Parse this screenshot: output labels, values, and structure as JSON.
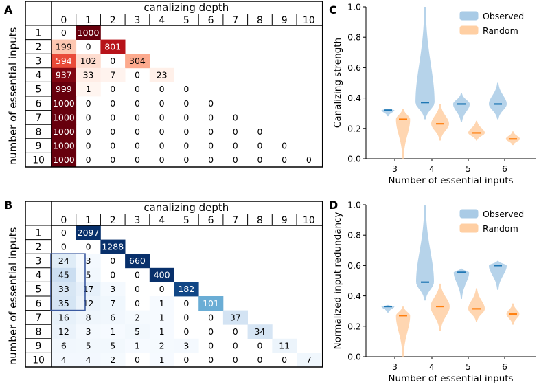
{
  "chart_data": [
    {
      "panel": "A",
      "type": "heatmap",
      "colormap": "reds",
      "vmax": 1000,
      "xlabel": "canalizing depth",
      "ylabel": "number of essential inputs",
      "col_labels": [
        "0",
        "1",
        "2",
        "3",
        "4",
        "5",
        "6",
        "7",
        "8",
        "9",
        "10"
      ],
      "row_labels": [
        "1",
        "2",
        "3",
        "4",
        "5",
        "6",
        "7",
        "8",
        "9",
        "10"
      ],
      "rows": [
        [
          0,
          1000
        ],
        [
          199,
          0,
          801
        ],
        [
          594,
          102,
          0,
          304
        ],
        [
          937,
          33,
          7,
          0,
          23
        ],
        [
          999,
          1,
          0,
          0,
          0,
          0
        ],
        [
          1000,
          0,
          0,
          0,
          0,
          0,
          0
        ],
        [
          1000,
          0,
          0,
          0,
          0,
          0,
          0,
          0
        ],
        [
          1000,
          0,
          0,
          0,
          0,
          0,
          0,
          0,
          0
        ],
        [
          1000,
          0,
          0,
          0,
          0,
          0,
          0,
          0,
          0,
          0
        ],
        [
          1000,
          0,
          0,
          0,
          0,
          0,
          0,
          0,
          0,
          0,
          0
        ]
      ]
    },
    {
      "panel": "B",
      "type": "heatmap",
      "colormap": "blues",
      "vmax": 200,
      "xlabel": "canalizing depth",
      "ylabel": "number of essential inputs",
      "col_labels": [
        "0",
        "1",
        "2",
        "3",
        "4",
        "5",
        "6",
        "7",
        "8",
        "9",
        "10"
      ],
      "row_labels": [
        "1",
        "2",
        "3",
        "4",
        "5",
        "6",
        "7",
        "8",
        "9",
        "10"
      ],
      "highlight": {
        "rows": [
          3,
          6
        ],
        "col": 0
      },
      "rows": [
        [
          0,
          2097
        ],
        [
          0,
          0,
          1288
        ],
        [
          24,
          3,
          0,
          660
        ],
        [
          45,
          5,
          0,
          0,
          400
        ],
        [
          33,
          17,
          3,
          0,
          0,
          182
        ],
        [
          35,
          12,
          7,
          0,
          1,
          0,
          101
        ],
        [
          16,
          8,
          6,
          2,
          1,
          0,
          0,
          37
        ],
        [
          12,
          3,
          1,
          5,
          1,
          0,
          0,
          0,
          34
        ],
        [
          6,
          5,
          5,
          1,
          2,
          3,
          0,
          0,
          0,
          11
        ],
        [
          4,
          4,
          2,
          0,
          1,
          0,
          0,
          0,
          0,
          0,
          7
        ]
      ]
    },
    {
      "panel": "C",
      "type": "violin",
      "xlabel": "Number of essential inputs",
      "ylabel": "Canalizing strength",
      "categories": [
        "3",
        "4",
        "5",
        "6"
      ],
      "ylim": [
        0.0,
        1.0
      ],
      "yticks": [
        "0.0",
        "0.2",
        "0.4",
        "0.6",
        "0.8",
        "1.0"
      ],
      "legend": [
        "Observed",
        "Random"
      ],
      "legend_position": "top-right",
      "series": [
        {
          "name": "Observed",
          "color": "#1f77b4",
          "fill": "#a9cbe6",
          "medians": [
            0.32,
            0.37,
            0.36,
            0.36
          ],
          "ranges": [
            [
              0.28,
              0.33
            ],
            [
              0.26,
              1.0
            ],
            [
              0.24,
              0.43
            ],
            [
              0.26,
              0.5
            ]
          ],
          "widths": [
            0.5,
            0.75,
            0.65,
            0.7
          ]
        },
        {
          "name": "Random",
          "color": "#ff7f0e",
          "fill": "#ffcfa3",
          "medians": [
            0.26,
            0.23,
            0.17,
            0.13
          ],
          "ranges": [
            [
              0.0,
              0.33
            ],
            [
              0.12,
              0.36
            ],
            [
              0.12,
              0.25
            ],
            [
              0.09,
              0.18
            ]
          ],
          "widths": [
            0.55,
            0.7,
            0.65,
            0.55
          ]
        }
      ]
    },
    {
      "panel": "D",
      "type": "violin",
      "xlabel": "Number of essential inputs",
      "ylabel": "Normalized input redundancy",
      "categories": [
        "3",
        "4",
        "5",
        "6"
      ],
      "ylim": [
        0.0,
        1.0
      ],
      "yticks": [
        "0.0",
        "0.2",
        "0.4",
        "0.6",
        "0.8",
        "1.0"
      ],
      "legend": [
        "Observed",
        "Random"
      ],
      "legend_position": "top-right",
      "series": [
        {
          "name": "Observed",
          "color": "#1f77b4",
          "fill": "#a9cbe6",
          "medians": [
            0.33,
            0.49,
            0.555,
            0.6
          ],
          "ranges": [
            [
              0.29,
              0.34
            ],
            [
              0.37,
              1.0
            ],
            [
              0.38,
              0.58
            ],
            [
              0.44,
              0.63
            ]
          ],
          "widths": [
            0.5,
            0.7,
            0.6,
            0.7
          ]
        },
        {
          "name": "Random",
          "color": "#ff7f0e",
          "fill": "#ffcfa3",
          "medians": [
            0.27,
            0.33,
            0.315,
            0.28
          ],
          "ranges": [
            [
              0.0,
              0.33
            ],
            [
              0.17,
              0.48
            ],
            [
              0.23,
              0.45
            ],
            [
              0.21,
              0.35
            ]
          ],
          "widths": [
            0.55,
            0.75,
            0.65,
            0.5
          ]
        }
      ]
    }
  ],
  "panel_letters": {
    "A": "A",
    "B": "B",
    "C": "C",
    "D": "D"
  }
}
